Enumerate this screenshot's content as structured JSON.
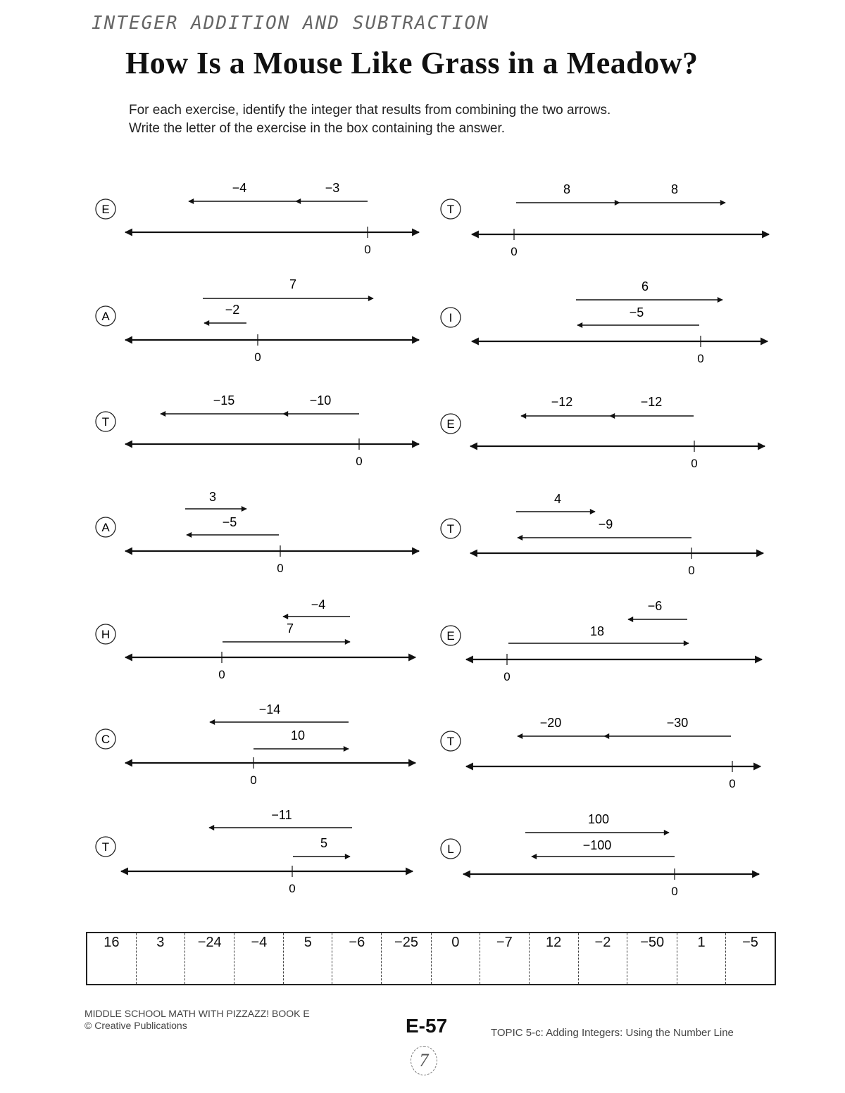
{
  "header": {
    "handwritten_topic": "INTEGER ADDITION AND SUBTRACTION",
    "title": "How Is a Mouse Like Grass in a Meadow?",
    "instructions": [
      "For each exercise, identify the integer that results from combining the two arrows.",
      "Write the letter of the exercise in the box containing the answer."
    ]
  },
  "exercises": [
    {
      "letter": "E",
      "arrows": [
        {
          "label": "−4",
          "value": -4
        },
        {
          "label": "−3",
          "value": -3
        }
      ],
      "zero_label": "0"
    },
    {
      "letter": "A",
      "arrows": [
        {
          "label": "7",
          "value": 7
        },
        {
          "label": "−2",
          "value": -2
        }
      ],
      "zero_label": "0"
    },
    {
      "letter": "T",
      "arrows": [
        {
          "label": "−15",
          "value": -15
        },
        {
          "label": "−10",
          "value": -10
        }
      ],
      "zero_label": "0"
    },
    {
      "letter": "A",
      "arrows": [
        {
          "label": "3",
          "value": 3
        },
        {
          "label": "−5",
          "value": -5
        }
      ],
      "zero_label": "0"
    },
    {
      "letter": "H",
      "arrows": [
        {
          "label": "−4",
          "value": -4
        },
        {
          "label": "7",
          "value": 7
        }
      ],
      "zero_label": "0"
    },
    {
      "letter": "C",
      "arrows": [
        {
          "label": "−14",
          "value": -14
        },
        {
          "label": "10",
          "value": 10
        }
      ],
      "zero_label": "0"
    },
    {
      "letter": "T",
      "arrows": [
        {
          "label": "−11",
          "value": -11
        },
        {
          "label": "5",
          "value": 5
        }
      ],
      "zero_label": "0"
    },
    {
      "letter": "T",
      "arrows": [
        {
          "label": "8",
          "value": 8
        },
        {
          "label": "8",
          "value": 8
        }
      ],
      "zero_label": "0"
    },
    {
      "letter": "I",
      "arrows": [
        {
          "label": "6",
          "value": 6
        },
        {
          "label": "−5",
          "value": -5
        }
      ],
      "zero_label": "0"
    },
    {
      "letter": "E",
      "arrows": [
        {
          "label": "−12",
          "value": -12
        },
        {
          "label": "−12",
          "value": -12
        }
      ],
      "zero_label": "0"
    },
    {
      "letter": "T",
      "arrows": [
        {
          "label": "4",
          "value": 4
        },
        {
          "label": "−9",
          "value": -9
        }
      ],
      "zero_label": "0"
    },
    {
      "letter": "E",
      "arrows": [
        {
          "label": "−6",
          "value": -6
        },
        {
          "label": "18",
          "value": 18
        }
      ],
      "zero_label": "0"
    },
    {
      "letter": "T",
      "arrows": [
        {
          "label": "−20",
          "value": -20
        },
        {
          "label": "−30",
          "value": -30
        }
      ],
      "zero_label": "0"
    },
    {
      "letter": "L",
      "arrows": [
        {
          "label": "100",
          "value": 100
        },
        {
          "label": "−100",
          "value": -100
        }
      ],
      "zero_label": "0"
    }
  ],
  "answer_boxes": [
    "16",
    "3",
    "−24",
    "−4",
    "5",
    "−6",
    "−25",
    "0",
    "−7",
    "12",
    "−2",
    "−50",
    "1",
    "−5"
  ],
  "footer": {
    "book": "MIDDLE SCHOOL MATH WITH PIZZAZZ! BOOK E",
    "copyright": "© Creative Publications",
    "page_code": "E-57",
    "topic": "TOPIC 5-c: Adding Integers: Using the Number Line",
    "page_number": "7"
  }
}
